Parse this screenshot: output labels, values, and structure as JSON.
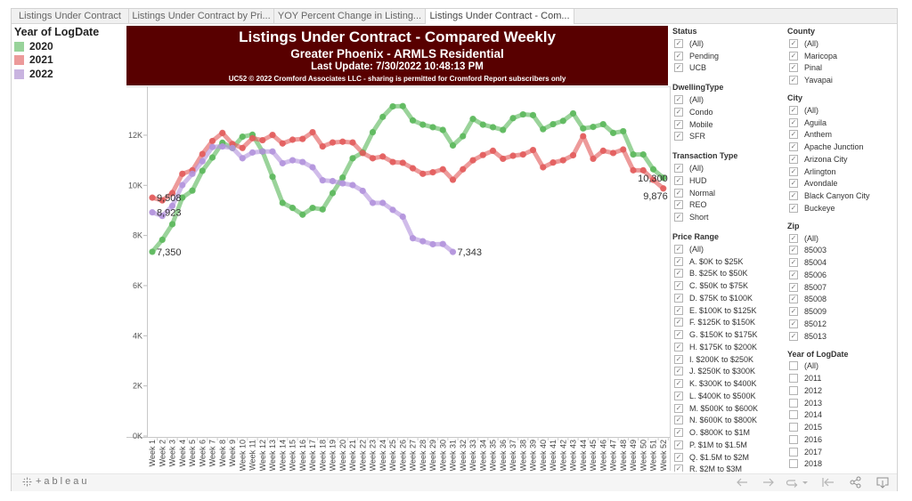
{
  "tabs": [
    {
      "label": "Listings Under Contract",
      "active": false
    },
    {
      "label": "Listings Under Contract by Pri...",
      "active": false
    },
    {
      "label": "YOY Percent Change in Listing...",
      "active": false
    },
    {
      "label": "Listings Under Contract - Com...",
      "active": true
    }
  ],
  "legend": {
    "title": "Year of LogDate",
    "items": [
      {
        "label": "2020",
        "color": "#98d39a"
      },
      {
        "label": "2021",
        "color": "#ec9a9a"
      },
      {
        "label": "2022",
        "color": "#c9b4e0"
      }
    ]
  },
  "header": {
    "title": "Listings Under Contract - Compared Weekly",
    "subtitle": "Greater Phoenix - ARMLS Residential",
    "last_update": "Last Update: 7/30/2022 10:48:13 PM",
    "credit": "UC52 © 2022 Cromford Associates LLC - sharing is permitted for Cromford Report subscribers only",
    "background": "#580000"
  },
  "chart_data": {
    "type": "line",
    "title": "Listings Under Contract - Compared Weekly",
    "xlabel": "",
    "ylabel": "",
    "ylim": [
      0,
      13950
    ],
    "grid": false,
    "legend_position": "top-left",
    "categories": [
      "Week 1",
      "Week 2",
      "Week 3",
      "Week 4",
      "Week 5",
      "Week 6",
      "Week 7",
      "Week 8",
      "Week 9",
      "Week 10",
      "Week 11",
      "Week 12",
      "Week 13",
      "Week 14",
      "Week 15",
      "Week 16",
      "Week 17",
      "Week 18",
      "Week 19",
      "Week 20",
      "Week 21",
      "Week 22",
      "Week 23",
      "Week 24",
      "Week 25",
      "Week 26",
      "Week 27",
      "Week 28",
      "Week 29",
      "Week 30",
      "Week 31",
      "Week 32",
      "Week 33",
      "Week 34",
      "Week 35",
      "Week 36",
      "Week 37",
      "Week 38",
      "Week 39",
      "Week 40",
      "Week 41",
      "Week 42",
      "Week 43",
      "Week 44",
      "Week 45",
      "Week 46",
      "Week 47",
      "Week 48",
      "Week 49",
      "Week 50",
      "Week 51",
      "Week 52"
    ],
    "ytick_values": [
      0,
      2000,
      4000,
      6000,
      8000,
      10000,
      12000
    ],
    "ytick_labels": [
      "0K",
      "2K",
      "4K",
      "6K",
      "8K",
      "10K",
      "12K"
    ],
    "series": [
      {
        "name": "2020",
        "color": "#5cb85c",
        "values": [
          7350,
          7830,
          8450,
          9510,
          9790,
          10580,
          11110,
          11700,
          11490,
          11940,
          12020,
          11350,
          10340,
          9300,
          9100,
          8830,
          9100,
          9040,
          9690,
          10310,
          11080,
          11310,
          12120,
          12730,
          13150,
          13160,
          12590,
          12420,
          12320,
          12210,
          11590,
          11960,
          12650,
          12420,
          12320,
          12210,
          12680,
          12830,
          12800,
          12240,
          12440,
          12570,
          12870,
          12270,
          12330,
          12440,
          12090,
          12160,
          11230,
          11230,
          10640,
          10300
        ]
      },
      {
        "name": "2021",
        "color": "#e25c5c",
        "values": [
          9508,
          9400,
          9690,
          10460,
          10600,
          11250,
          11770,
          12090,
          11650,
          11490,
          11880,
          11800,
          12010,
          11670,
          11820,
          11850,
          12120,
          11550,
          11710,
          11740,
          11710,
          11290,
          11080,
          11150,
          10930,
          10900,
          10680,
          10460,
          10520,
          10640,
          10220,
          10640,
          11000,
          11210,
          11380,
          11060,
          11180,
          11230,
          11410,
          10720,
          10910,
          11000,
          11200,
          11960,
          11060,
          11380,
          11290,
          11430,
          10600,
          10600,
          10220,
          9876
        ]
      },
      {
        "name": "2022",
        "color": "#b393dd",
        "values": [
          8923,
          8780,
          9180,
          10010,
          10460,
          10960,
          11530,
          11550,
          11490,
          11080,
          11310,
          11350,
          11350,
          10880,
          11000,
          10930,
          10720,
          10200,
          10170,
          10080,
          10010,
          9780,
          9300,
          9300,
          9020,
          8750,
          7890,
          7770,
          7650,
          7660,
          7343
        ]
      }
    ],
    "data_labels": [
      {
        "series": 1,
        "index": 0,
        "text": "9,508"
      },
      {
        "series": 2,
        "index": 0,
        "text": "8,923"
      },
      {
        "series": 0,
        "index": 0,
        "text": "7,350"
      },
      {
        "series": 2,
        "index": 30,
        "text": "7,343"
      },
      {
        "series": 0,
        "index": 51,
        "text": "10,300"
      },
      {
        "series": 1,
        "index": 51,
        "text": "9,876"
      }
    ]
  },
  "filters": {
    "left": [
      {
        "title": "Status",
        "items": [
          {
            "label": "(All)",
            "checked": true
          },
          {
            "label": "Pending",
            "checked": true
          },
          {
            "label": "UCB",
            "checked": true
          }
        ]
      },
      {
        "title": "DwellingType",
        "items": [
          {
            "label": "(All)",
            "checked": true
          },
          {
            "label": "Condo",
            "checked": true
          },
          {
            "label": "Mobile",
            "checked": true
          },
          {
            "label": "SFR",
            "checked": true
          }
        ]
      },
      {
        "title": "Transaction Type",
        "items": [
          {
            "label": "(All)",
            "checked": true
          },
          {
            "label": "HUD",
            "checked": true
          },
          {
            "label": "Normal",
            "checked": true
          },
          {
            "label": "REO",
            "checked": true
          },
          {
            "label": "Short",
            "checked": true
          }
        ]
      },
      {
        "title": "Price Range",
        "items": [
          {
            "label": "(All)",
            "checked": true
          },
          {
            "label": "A. $0K to $25K",
            "checked": true
          },
          {
            "label": "B. $25K to $50K",
            "checked": true
          },
          {
            "label": "C. $50K to $75K",
            "checked": true
          },
          {
            "label": "D. $75K to $100K",
            "checked": true
          },
          {
            "label": "E. $100K to $125K",
            "checked": true
          },
          {
            "label": "F. $125K to $150K",
            "checked": true
          },
          {
            "label": "G. $150K to $175K",
            "checked": true
          },
          {
            "label": "H. $175K to $200K",
            "checked": true
          },
          {
            "label": "I. $200K to $250K",
            "checked": true
          },
          {
            "label": "J. $250K to $300K",
            "checked": true
          },
          {
            "label": "K. $300K to $400K",
            "checked": true
          },
          {
            "label": "L. $400K to $500K",
            "checked": true
          },
          {
            "label": "M. $500K to $600K",
            "checked": true
          },
          {
            "label": "N. $600K to $800K",
            "checked": true
          },
          {
            "label": "O. $800K to $1M",
            "checked": true
          },
          {
            "label": "P. $1M to $1.5M",
            "checked": true
          },
          {
            "label": "Q. $1.5M to $2M",
            "checked": true
          },
          {
            "label": "R. $2M to $3M",
            "checked": true
          }
        ]
      }
    ],
    "right": [
      {
        "title": "County",
        "items": [
          {
            "label": "(All)",
            "checked": true
          },
          {
            "label": "Maricopa",
            "checked": true
          },
          {
            "label": "Pinal",
            "checked": true
          },
          {
            "label": "Yavapai",
            "checked": true
          }
        ]
      },
      {
        "title": "City",
        "items": [
          {
            "label": "(All)",
            "checked": true
          },
          {
            "label": "Aguila",
            "checked": true
          },
          {
            "label": "Anthem",
            "checked": true
          },
          {
            "label": "Apache Junction",
            "checked": true
          },
          {
            "label": "Arizona City",
            "checked": true
          },
          {
            "label": "Arlington",
            "checked": true
          },
          {
            "label": "Avondale",
            "checked": true
          },
          {
            "label": "Black Canyon City",
            "checked": true
          },
          {
            "label": "Buckeye",
            "checked": true
          }
        ]
      },
      {
        "title": "Zip",
        "items": [
          {
            "label": "(All)",
            "checked": true
          },
          {
            "label": "85003",
            "checked": true
          },
          {
            "label": "85004",
            "checked": true
          },
          {
            "label": "85006",
            "checked": true
          },
          {
            "label": "85007",
            "checked": true
          },
          {
            "label": "85008",
            "checked": true
          },
          {
            "label": "85009",
            "checked": true
          },
          {
            "label": "85012",
            "checked": true
          },
          {
            "label": "85013",
            "checked": true
          }
        ]
      },
      {
        "title": "Year of LogDate",
        "items": [
          {
            "label": "(All)",
            "checked": false
          },
          {
            "label": "2011",
            "checked": false
          },
          {
            "label": "2012",
            "checked": false
          },
          {
            "label": "2013",
            "checked": false
          },
          {
            "label": "2014",
            "checked": false
          },
          {
            "label": "2015",
            "checked": false
          },
          {
            "label": "2016",
            "checked": false
          },
          {
            "label": "2017",
            "checked": false
          },
          {
            "label": "2018",
            "checked": false
          }
        ]
      }
    ]
  },
  "toolbar": {
    "brand": "+ableau",
    "buttons": [
      "undo-icon",
      "redo-icon",
      "revert-icon",
      "revert-dropdown-icon",
      "reset-icon",
      "share-icon",
      "download-icon"
    ]
  }
}
